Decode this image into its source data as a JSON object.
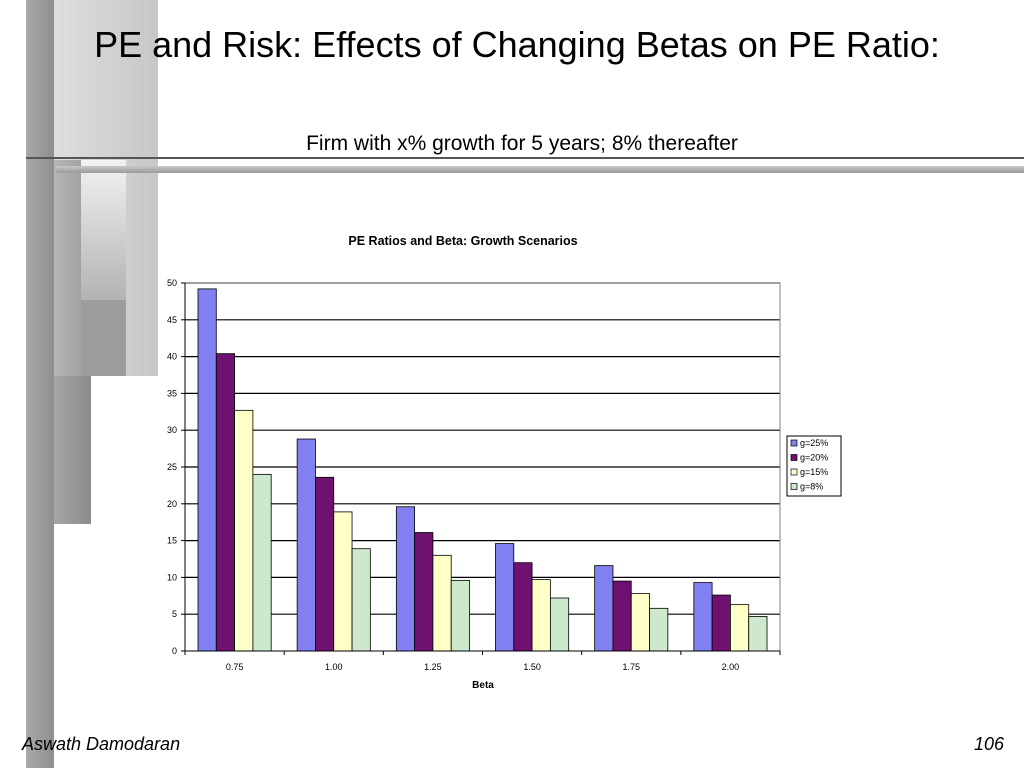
{
  "slide": {
    "title": "PE and Risk: Effects of Changing Betas on PE Ratio:",
    "subtitle": "Firm with x% growth for 5 years; 8% thereafter",
    "footer_left": "Aswath Damodaran",
    "footer_right": "106"
  },
  "chart_data": {
    "type": "bar",
    "title": "PE Ratios and Beta: Growth Scenarios",
    "xlabel": "Beta",
    "ylabel": "",
    "categories": [
      "0.75",
      "1.00",
      "1.25",
      "1.50",
      "1.75",
      "2.00"
    ],
    "ylim": [
      0,
      50
    ],
    "yticks": [
      0,
      5,
      10,
      15,
      20,
      25,
      30,
      35,
      40,
      45,
      50
    ],
    "grid": true,
    "legend_position": "right",
    "series": [
      {
        "name": "g=25%",
        "color": "#8080f0",
        "values": [
          49.2,
          28.8,
          19.6,
          14.6,
          11.6,
          9.3
        ]
      },
      {
        "name": "g=20%",
        "color": "#6e1170",
        "values": [
          40.4,
          23.6,
          16.1,
          12.0,
          9.5,
          7.6
        ]
      },
      {
        "name": "g=15%",
        "color": "#ffffc8",
        "values": [
          32.7,
          18.9,
          13.0,
          9.7,
          7.8,
          6.3
        ]
      },
      {
        "name": "g=8%",
        "color": "#cde8cd",
        "values": [
          24.0,
          13.9,
          9.6,
          7.2,
          5.8,
          4.7
        ]
      }
    ]
  }
}
